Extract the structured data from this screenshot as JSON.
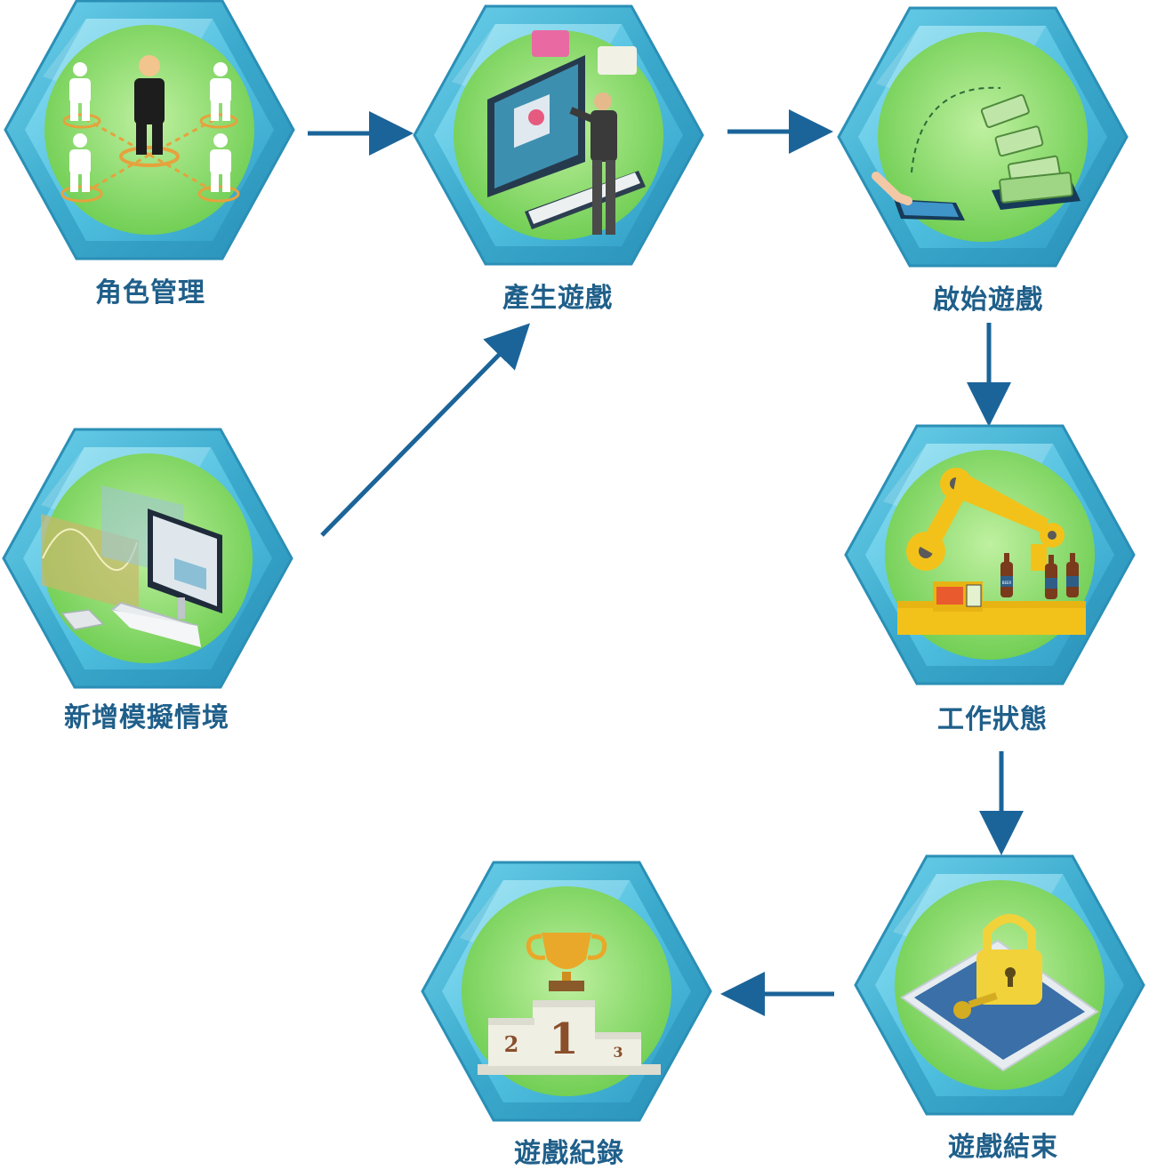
{
  "nodes": [
    {
      "id": "role",
      "label": "角色管理",
      "icon": "people-network-icon"
    },
    {
      "id": "create",
      "label": "產生遊戲",
      "icon": "computer-presenter-icon"
    },
    {
      "id": "start",
      "label": "啟始遊戲",
      "icon": "mobile-payment-icon"
    },
    {
      "id": "scenario",
      "label": "新增模擬情境",
      "icon": "analytics-desktop-icon"
    },
    {
      "id": "work",
      "label": "工作狀態",
      "icon": "robot-arm-bottling-icon"
    },
    {
      "id": "record",
      "label": "遊戲紀錄",
      "icon": "trophy-podium-icon"
    },
    {
      "id": "end",
      "label": "遊戲結束",
      "icon": "padlock-tablet-icon"
    }
  ],
  "podium": {
    "first": "1",
    "second": "2",
    "third": "3"
  },
  "bottle_label": "BEER",
  "colors": {
    "hex_outer": "#3aa9cc",
    "hex_inner": "#5cc4e0",
    "circle": "#8fdc6a",
    "arrow": "#1b6499",
    "label": "#1f5f8a"
  }
}
